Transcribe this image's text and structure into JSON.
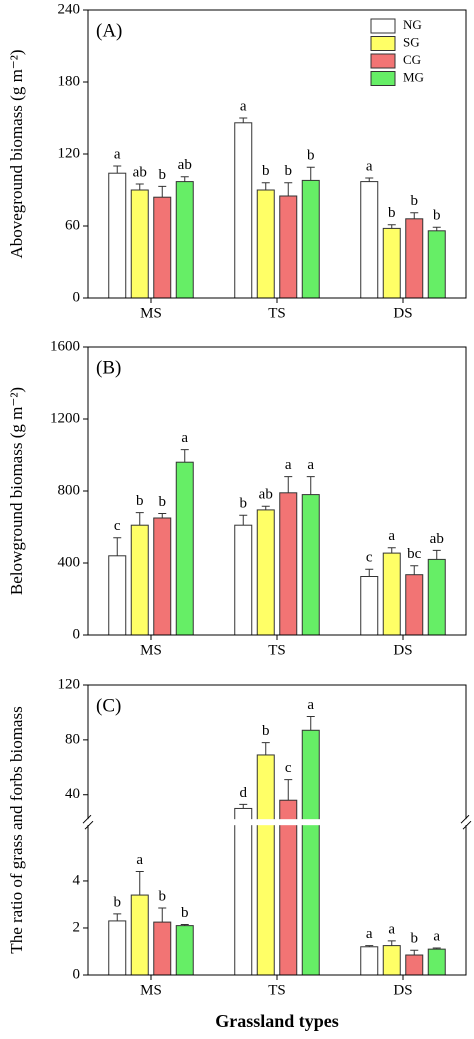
{
  "chart_data": [
    {
      "type": "bar",
      "panel_label": "(A)",
      "ylabel": "Aboveground biomass (g m⁻²)",
      "categories": [
        "MS",
        "TS",
        "DS"
      ],
      "ylim": [
        0,
        240
      ],
      "yticks": [
        0,
        60,
        120,
        180,
        240
      ],
      "legend": "top-right",
      "series": [
        {
          "name": "NG",
          "color": "#ffffff",
          "values": [
            104,
            146,
            97
          ],
          "errors": [
            6,
            4,
            3
          ],
          "letters": [
            "a",
            "a",
            "a"
          ]
        },
        {
          "name": "SG",
          "color": "#ffff66",
          "values": [
            90,
            90,
            58
          ],
          "errors": [
            5,
            6,
            3
          ],
          "letters": [
            "ab",
            "b",
            "b"
          ]
        },
        {
          "name": "CG",
          "color": "#f27474",
          "values": [
            84,
            85,
            66
          ],
          "errors": [
            9,
            11,
            5
          ],
          "letters": [
            "b",
            "b",
            "b"
          ]
        },
        {
          "name": "MG",
          "color": "#66ee66",
          "values": [
            97,
            98,
            56
          ],
          "errors": [
            4,
            11,
            3
          ],
          "letters": [
            "ab",
            "b",
            "b"
          ]
        }
      ]
    },
    {
      "type": "bar",
      "panel_label": "(B)",
      "ylabel": "Belowground biomass (g m⁻²)",
      "categories": [
        "MS",
        "TS",
        "DS"
      ],
      "ylim": [
        0,
        1600
      ],
      "yticks": [
        0,
        400,
        800,
        1200,
        1600
      ],
      "series": [
        {
          "name": "NG",
          "color": "#ffffff",
          "values": [
            440,
            610,
            325
          ],
          "errors": [
            100,
            55,
            40
          ],
          "letters": [
            "c",
            "b",
            "c"
          ]
        },
        {
          "name": "SG",
          "color": "#ffff66",
          "values": [
            610,
            695,
            455
          ],
          "errors": [
            70,
            20,
            30
          ],
          "letters": [
            "b",
            "ab",
            "a"
          ]
        },
        {
          "name": "CG",
          "color": "#f27474",
          "values": [
            650,
            790,
            335
          ],
          "errors": [
            25,
            90,
            50
          ],
          "letters": [
            "b",
            "a",
            "bc"
          ]
        },
        {
          "name": "MG",
          "color": "#66ee66",
          "values": [
            960,
            780,
            420
          ],
          "errors": [
            70,
            100,
            50
          ],
          "letters": [
            "a",
            "a",
            "ab"
          ]
        }
      ]
    },
    {
      "type": "bar",
      "panel_label": "(C)",
      "ylabel": "The ratio of grass and forbs biomass",
      "xlabel": "Grassland types",
      "categories": [
        "MS",
        "TS",
        "DS"
      ],
      "ylim": [
        0,
        120
      ],
      "ybreak": [
        6.5,
        20
      ],
      "yticks": [
        0,
        2,
        4,
        40,
        80,
        120
      ],
      "series": [
        {
          "name": "NG",
          "color": "#ffffff",
          "values": [
            2.3,
            30,
            1.2
          ],
          "errors": [
            0.3,
            3,
            0.05
          ],
          "letters": [
            "b",
            "d",
            "a"
          ]
        },
        {
          "name": "SG",
          "color": "#ffff66",
          "values": [
            3.4,
            69,
            1.25
          ],
          "errors": [
            1.0,
            9,
            0.2
          ],
          "letters": [
            "a",
            "b",
            "a"
          ]
        },
        {
          "name": "CG",
          "color": "#f27474",
          "values": [
            2.25,
            36,
            0.85
          ],
          "errors": [
            0.6,
            15,
            0.2
          ],
          "letters": [
            "b",
            "c",
            "b"
          ]
        },
        {
          "name": "MG",
          "color": "#66ee66",
          "values": [
            2.1,
            87,
            1.1
          ],
          "errors": [
            0.05,
            10,
            0.05
          ],
          "letters": [
            "b",
            "a",
            "a"
          ]
        }
      ]
    }
  ]
}
